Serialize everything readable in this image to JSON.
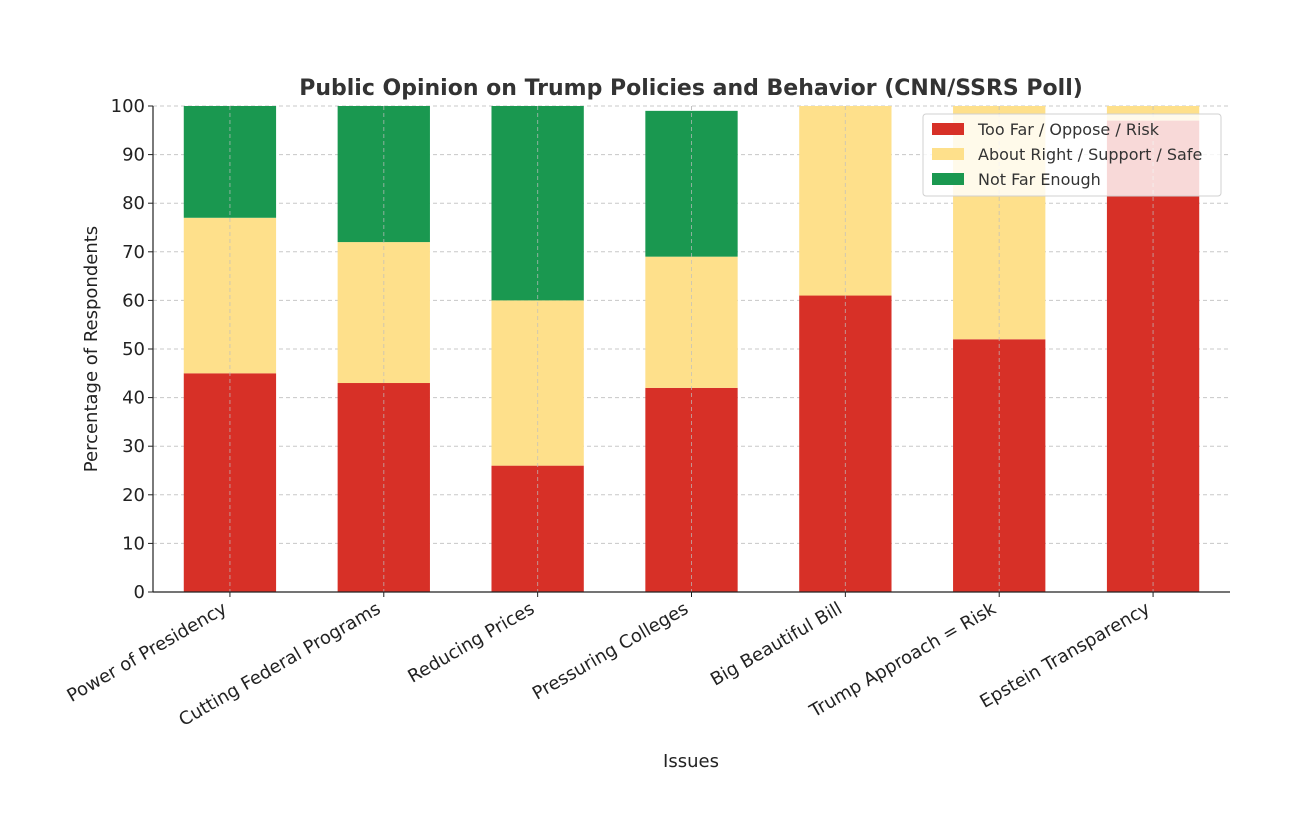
{
  "chart_data": {
    "type": "bar",
    "stacked": true,
    "title": "Public Opinion on Trump Policies and Behavior (CNN/SSRS Poll)",
    "xlabel": "Issues",
    "ylabel": "Percentage of Respondents",
    "ylim": [
      0,
      100
    ],
    "yticks": [
      0,
      10,
      20,
      30,
      40,
      50,
      60,
      70,
      80,
      90,
      100
    ],
    "grid": true,
    "legend_position": "top-right",
    "categories": [
      "Power of Presidency",
      "Cutting Federal Programs",
      "Reducing Prices",
      "Pressuring Colleges",
      "Big Beautiful Bill",
      "Trump Approach = Risk",
      "Epstein Transparency"
    ],
    "series": [
      {
        "name": "Too Far / Oppose / Risk",
        "color": "#d73027",
        "values": [
          45,
          43,
          26,
          42,
          61,
          52,
          97
        ]
      },
      {
        "name": "About Right / Support / Safe",
        "color": "#fee08b",
        "values": [
          32,
          29,
          34,
          27,
          39,
          48,
          3
        ]
      },
      {
        "name": "Not Far Enough",
        "color": "#1a9850",
        "values": [
          23,
          28,
          40,
          30,
          0,
          0,
          0
        ]
      }
    ]
  }
}
